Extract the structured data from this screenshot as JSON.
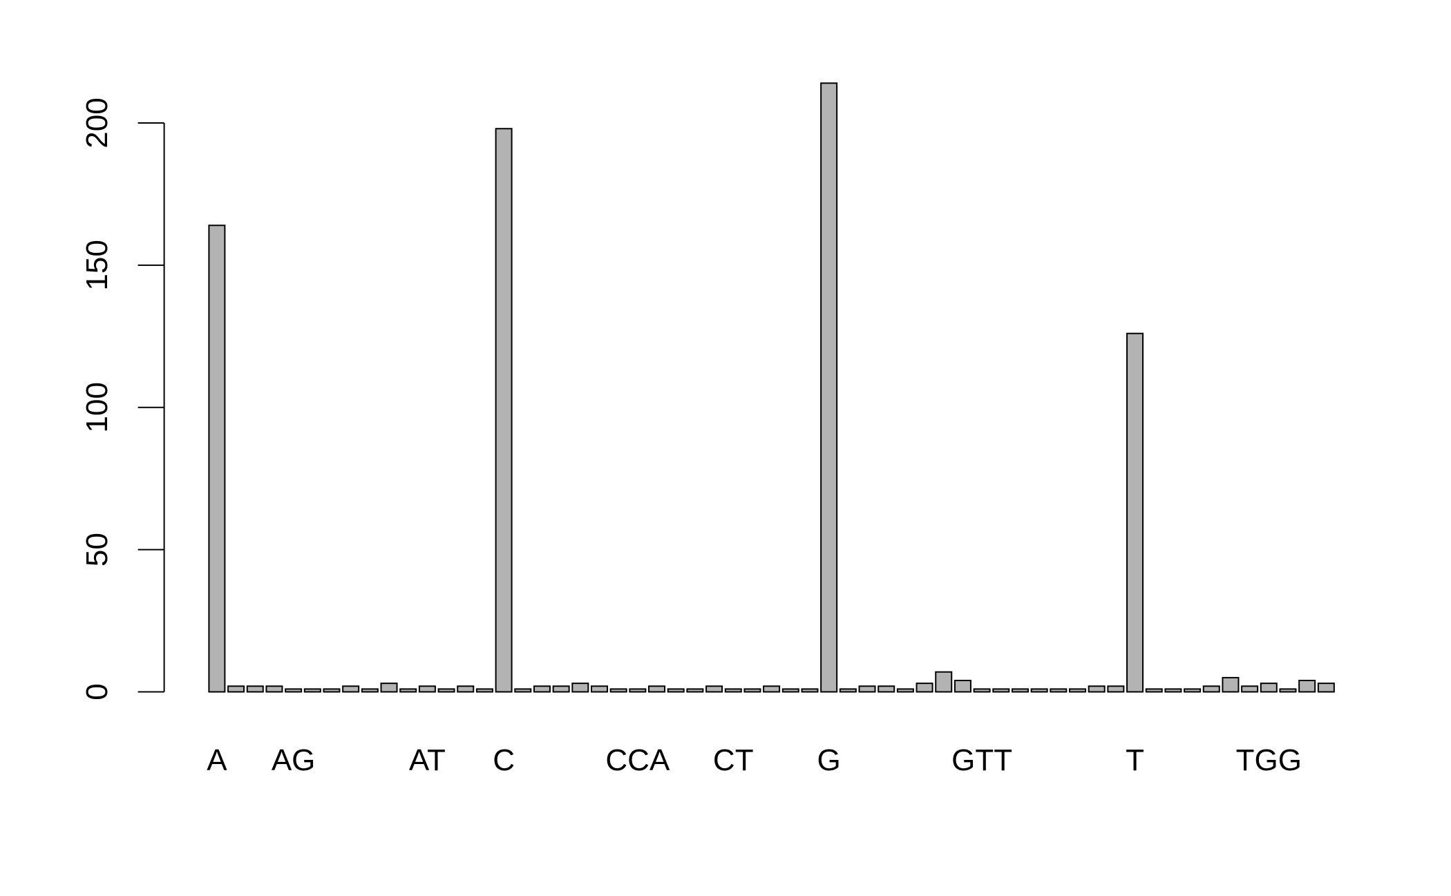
{
  "chart_data": {
    "type": "bar",
    "categories": [
      "A",
      null,
      null,
      null,
      "AG",
      null,
      null,
      null,
      null,
      null,
      null,
      "AT",
      null,
      null,
      null,
      "C",
      null,
      null,
      null,
      null,
      null,
      null,
      "CCA",
      null,
      null,
      null,
      null,
      "CT",
      null,
      null,
      null,
      null,
      "G",
      null,
      null,
      null,
      null,
      null,
      null,
      null,
      "GTT",
      null,
      null,
      null,
      null,
      null,
      null,
      null,
      "T",
      null,
      null,
      null,
      null,
      null,
      null,
      "TGG",
      null,
      null,
      null
    ],
    "values": [
      164,
      2,
      2,
      2,
      1,
      1,
      1,
      2,
      1,
      3,
      1,
      2,
      1,
      2,
      1,
      198,
      1,
      2,
      2,
      3,
      2,
      1,
      1,
      2,
      1,
      1,
      2,
      1,
      1,
      2,
      1,
      1,
      214,
      1,
      2,
      2,
      1,
      3,
      7,
      4,
      1,
      1,
      1,
      1,
      1,
      1,
      2,
      2,
      126,
      1,
      1,
      1,
      2,
      5,
      2,
      3,
      1,
      4,
      3
    ],
    "color": "#b3b3b3",
    "ylim": [
      0,
      200
    ],
    "yticks": [
      0,
      50,
      100,
      150,
      200
    ]
  }
}
